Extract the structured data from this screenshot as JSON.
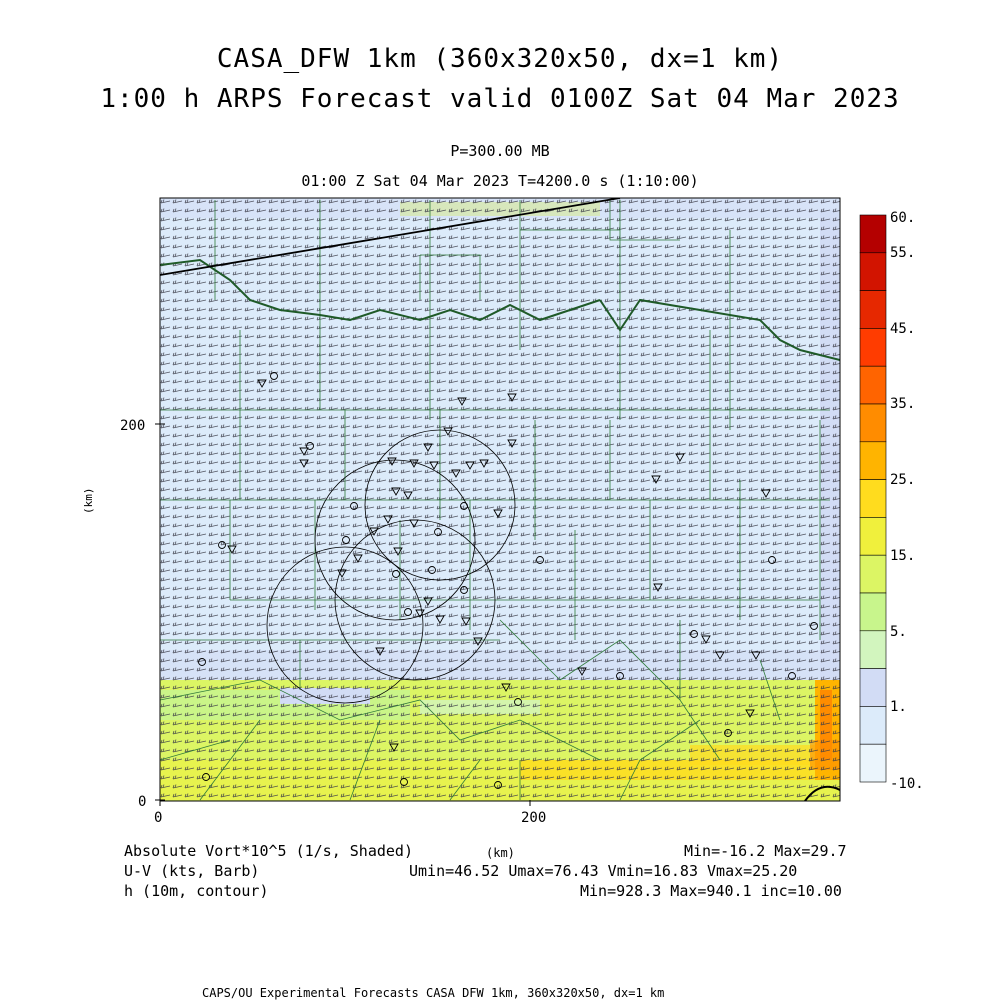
{
  "title_line1": "CASA_DFW 1km (360x320x50, dx=1 km)",
  "title_line2": "1:00 h ARPS Forecast valid 0100Z Sat 04 Mar 2023",
  "pressure_level": "P=300.00 MB",
  "valid_time": "01:00 Z Sat 04 Mar 2023   T=4200.0 s (1:10:00)",
  "axes": {
    "x_unit": "(km)",
    "y_unit": "(km)",
    "x_ticks": [
      "0",
      "200"
    ],
    "y_ticks": [
      "0",
      "200"
    ]
  },
  "colorbar": {
    "labels": [
      "60.",
      "55.",
      "45.",
      "35.",
      "25.",
      "15.",
      "5.",
      "1.",
      "-10."
    ],
    "colors": [
      "#b40000",
      "#d21400",
      "#e62800",
      "#ff3c00",
      "#ff6400",
      "#ff8c00",
      "#ffb400",
      "#ffdc1e",
      "#f0f03c",
      "#dcf564",
      "#c8f58c",
      "#d2f5be",
      "#d2dcf5",
      "#dcebfa",
      "#ebf5fc"
    ]
  },
  "legend": {
    "field1": "Absolute Vort*10^5 (1/s, Shaded)",
    "field1_stats": "Min=-16.2 Max=29.7",
    "field2": "U-V (kts, Barb)",
    "field2_stats": "Umin=46.52 Umax=76.43 Vmin=16.83 Vmax=25.20",
    "field3": "h (10m, contour)",
    "field3_stats": "Min=928.3 Max=940.1 inc=10.00",
    "center_unit": "(km)"
  },
  "footer": "CAPS/OU Experimental Forecasts  CASA DFW 1km, 360x320x50, dx=1 km"
}
